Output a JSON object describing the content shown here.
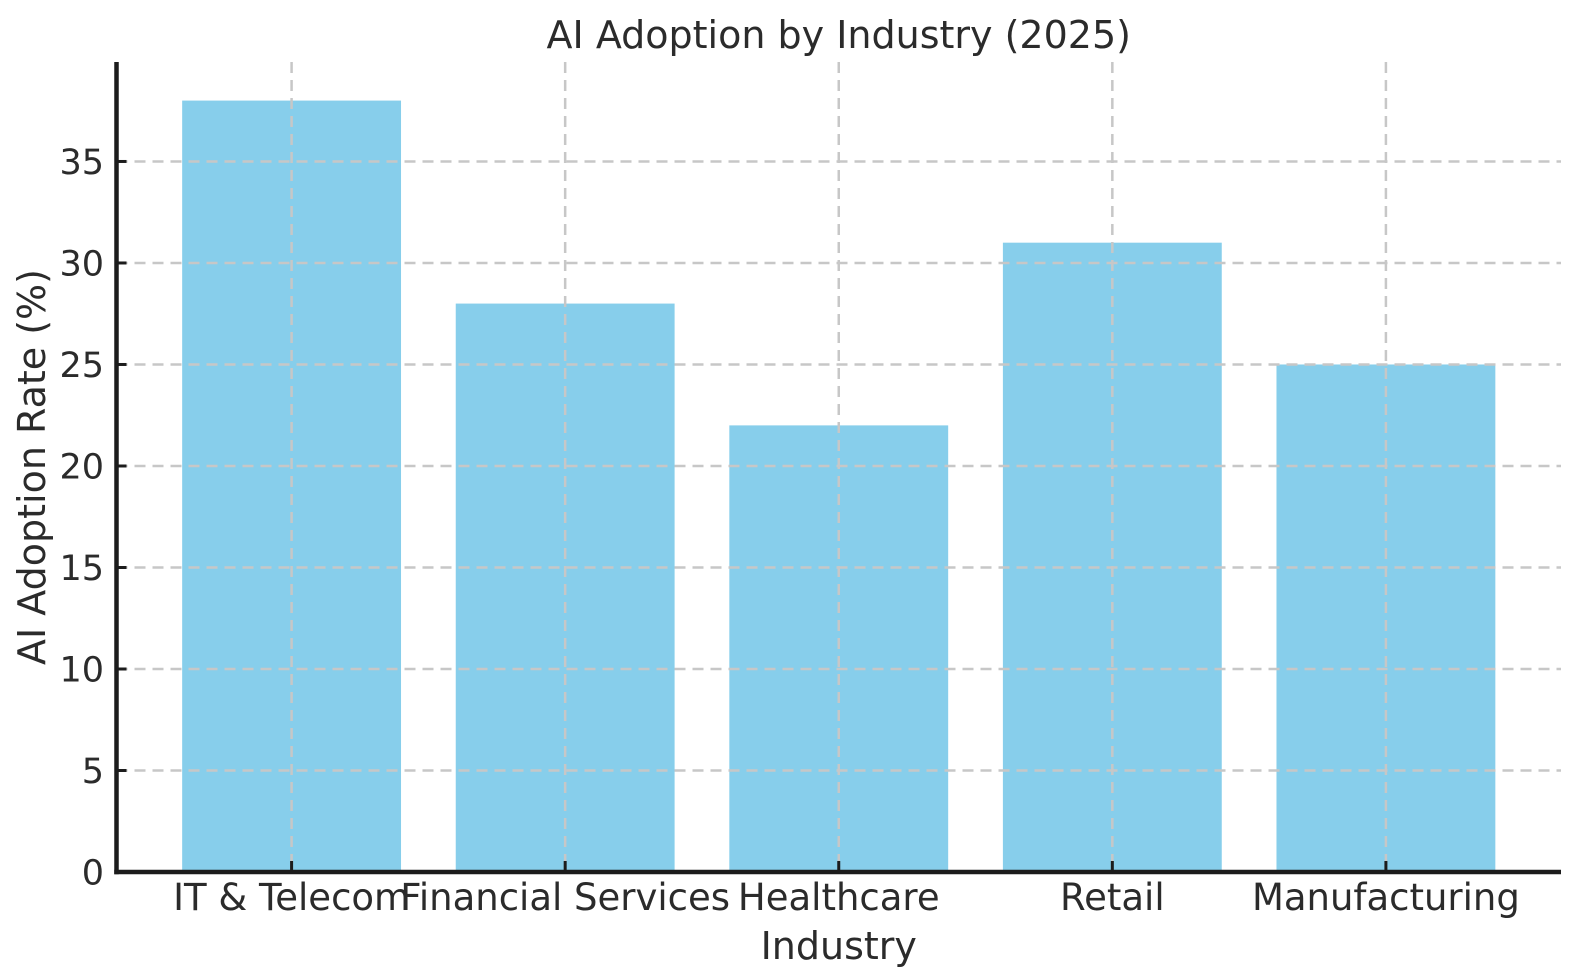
{
  "chart_data": {
    "type": "bar",
    "title": "AI Adoption by Industry (2025)",
    "xlabel": "Industry",
    "ylabel": "AI Adoption Rate (%)",
    "categories": [
      "IT & Telecom",
      "Financial Services",
      "Healthcare",
      "Retail",
      "Manufacturing"
    ],
    "values": [
      38,
      28,
      22,
      31,
      25
    ],
    "ylim": [
      0,
      39.9
    ],
    "yticks": [
      0,
      5,
      10,
      15,
      20,
      25,
      30,
      35
    ],
    "bar_color": "#87CEEB",
    "axis_color": "#1c1c1c",
    "text_color": "#2b2b2b",
    "gridline_color": "#c7c7c7",
    "grid": "on",
    "grid_style": "dashed",
    "legend_position": "none",
    "background_color": "#ffffff"
  }
}
